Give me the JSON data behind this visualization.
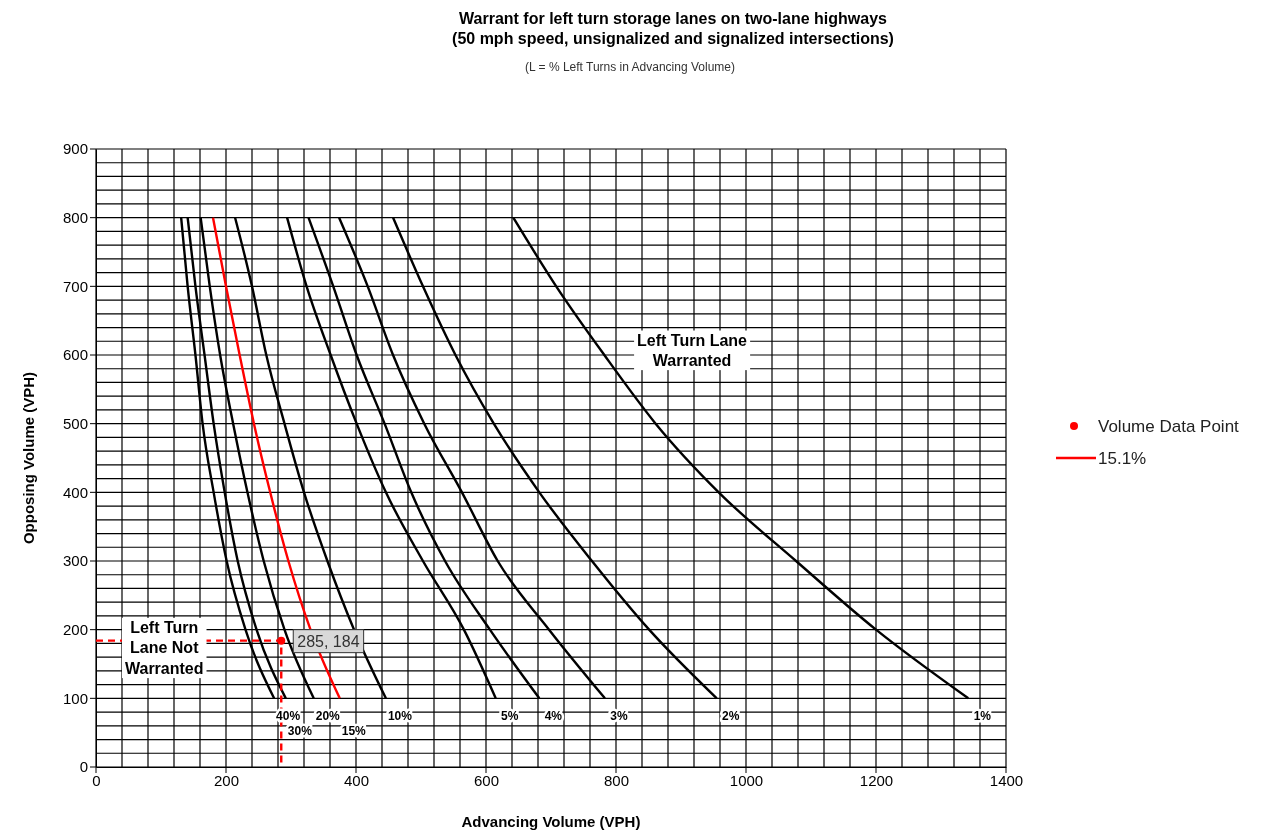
{
  "chart_data": {
    "type": "line",
    "title": "Warrant for left turn storage lanes on two-lane highways\n(50 mph speed, unsignalized and signalized intersections)",
    "subtitle": "(L = % Left Turns in Advancing Volume)",
    "xlabel": "Advancing Volume (VPH)",
    "ylabel": "Opposing Volume (VPH)",
    "xlim": [
      0,
      1400
    ],
    "ylim": [
      0,
      900
    ],
    "xticks": [
      0,
      {
        "value": 40,
        "label": null
      },
      {
        "value": 80,
        "label": null
      },
      {
        "value": 120,
        "label": null
      },
      {
        "value": 160,
        "label": null
      },
      200,
      {
        "value": 240,
        "label": null
      },
      {
        "value": 280,
        "label": null
      },
      {
        "value": 320,
        "label": null
      },
      {
        "value": 360,
        "label": null
      },
      400,
      {
        "value": 440,
        "label": null
      },
      {
        "value": 480,
        "label": null
      },
      {
        "value": 520,
        "label": null
      },
      {
        "value": 560,
        "label": null
      },
      600,
      {
        "value": 640,
        "label": null
      },
      {
        "value": 680,
        "label": null
      },
      {
        "value": 720,
        "label": null
      },
      {
        "value": 760,
        "label": null
      },
      800,
      {
        "value": 840,
        "label": null
      },
      {
        "value": 880,
        "label": null
      },
      {
        "value": 920,
        "label": null
      },
      {
        "value": 960,
        "label": null
      },
      1000,
      {
        "value": 1040,
        "label": null
      },
      {
        "value": 1080,
        "label": null
      },
      {
        "value": 1120,
        "label": null
      },
      {
        "value": 1160,
        "label": null
      },
      1200,
      {
        "value": 1240,
        "label": null
      },
      {
        "value": 1280,
        "label": null
      },
      {
        "value": 1320,
        "label": null
      },
      {
        "value": 1360,
        "label": null
      },
      1400
    ],
    "yticks": [
      0,
      {
        "value": 20,
        "label": null
      },
      {
        "value": 40,
        "label": null
      },
      {
        "value": 60,
        "label": null
      },
      {
        "value": 80,
        "label": null
      },
      100,
      {
        "value": 120,
        "label": null
      },
      {
        "value": 140,
        "label": null
      },
      {
        "value": 160,
        "label": null
      },
      {
        "value": 180,
        "label": null
      },
      200,
      {
        "value": 220,
        "label": null
      },
      {
        "value": 240,
        "label": null
      },
      {
        "value": 260,
        "label": null
      },
      {
        "value": 280,
        "label": null
      },
      300,
      {
        "value": 320,
        "label": null
      },
      {
        "value": 340,
        "label": null
      },
      {
        "value": 360,
        "label": null
      },
      {
        "value": 380,
        "label": null
      },
      400,
      {
        "value": 420,
        "label": null
      },
      {
        "value": 440,
        "label": null
      },
      {
        "value": 460,
        "label": null
      },
      {
        "value": 480,
        "label": null
      },
      500,
      {
        "value": 520,
        "label": null
      },
      {
        "value": 540,
        "label": null
      },
      {
        "value": 560,
        "label": null
      },
      {
        "value": 580,
        "label": null
      },
      600,
      {
        "value": 620,
        "label": null
      },
      {
        "value": 640,
        "label": null
      },
      {
        "value": 660,
        "label": null
      },
      {
        "value": 680,
        "label": null
      },
      700,
      {
        "value": 720,
        "label": null
      },
      {
        "value": 740,
        "label": null
      },
      {
        "value": 760,
        "label": null
      },
      {
        "value": 780,
        "label": null
      },
      800,
      {
        "value": 820,
        "label": null
      },
      {
        "value": 840,
        "label": null
      },
      {
        "value": 860,
        "label": null
      },
      {
        "value": 880,
        "label": null
      },
      900
    ],
    "grid": true,
    "legend": "right",
    "marker": "none",
    "line_style": "solid",
    "series": [
      {
        "name": "40%",
        "color": "#000000",
        "x": [
          131,
          141,
          153,
          164,
          181,
          201,
          230,
          274
        ],
        "values": [
          800,
          700,
          600,
          500,
          400,
          300,
          200,
          100
        ]
      },
      {
        "name": "30%",
        "color": "#000000",
        "x": [
          141,
          153,
          167,
          181,
          198,
          218,
          247,
          292
        ],
        "values": [
          800,
          700,
          600,
          500,
          400,
          300,
          200,
          100
        ]
      },
      {
        "name": "20%",
        "color": "#000000",
        "x": [
          161,
          175,
          191,
          211,
          233,
          258,
          290,
          335
        ],
        "values": [
          800,
          700,
          600,
          500,
          400,
          300,
          200,
          100
        ]
      },
      {
        "name": "10%",
        "color": "#000000",
        "x": [
          214,
          240,
          262,
          290,
          320,
          356,
          397,
          446
        ],
        "values": [
          800,
          700,
          600,
          500,
          400,
          300,
          200,
          100
        ]
      },
      {
        "name": "5%",
        "color": "#000000",
        "x": [
          294,
          324,
          361,
          401,
          446,
          503,
          566,
          615
        ],
        "values": [
          800,
          700,
          600,
          500,
          400,
          300,
          200,
          100
        ]
      },
      {
        "name": "4%",
        "color": "#000000",
        "x": [
          327,
          365,
          401,
          444,
          485,
          537,
          606,
          682
        ],
        "values": [
          800,
          700,
          600,
          500,
          400,
          300,
          200,
          100
        ]
      },
      {
        "name": "3%",
        "color": "#000000",
        "x": [
          374,
          418,
          457,
          505,
          563,
          618,
          697,
          783
        ],
        "values": [
          800,
          700,
          600,
          500,
          400,
          300,
          200,
          100
        ]
      },
      {
        "name": "2%",
        "color": "#000000",
        "x": [
          457,
          503,
          553,
          612,
          682,
          763,
          851,
          955
        ],
        "values": [
          800,
          700,
          600,
          500,
          400,
          300,
          200,
          100
        ]
      },
      {
        "name": "1%",
        "color": "#000000",
        "x": [
          642,
          708,
          782,
          861,
          958,
          1077,
          1200,
          1342
        ],
        "values": [
          800,
          700,
          600,
          500,
          400,
          300,
          200,
          100
        ]
      },
      {
        "color": "#ff0000",
        "line_style": "dashed",
        "x": [
          0,
          285,
          285
        ],
        "values": [
          184,
          184,
          0
        ]
      },
      {
        "type": "scatter",
        "name": "Volume Data Point",
        "color": "#ff0000",
        "marker": "circle",
        "x": [
          285
        ],
        "values": [
          184
        ],
        "value_labels": [
          "285, 184"
        ]
      },
      {
        "name": "15.1%",
        "color": "#ff0000",
        "x": [
          180,
          200,
          221,
          243,
          268,
          296,
          330,
          375
        ],
        "values": [
          800,
          700,
          600,
          500,
          400,
          300,
          200,
          100
        ]
      }
    ],
    "annotations": [
      "Left Turn Lane\nWarranted",
      "Left Turn\nLane Not\nWarranted",
      "15%"
    ]
  }
}
